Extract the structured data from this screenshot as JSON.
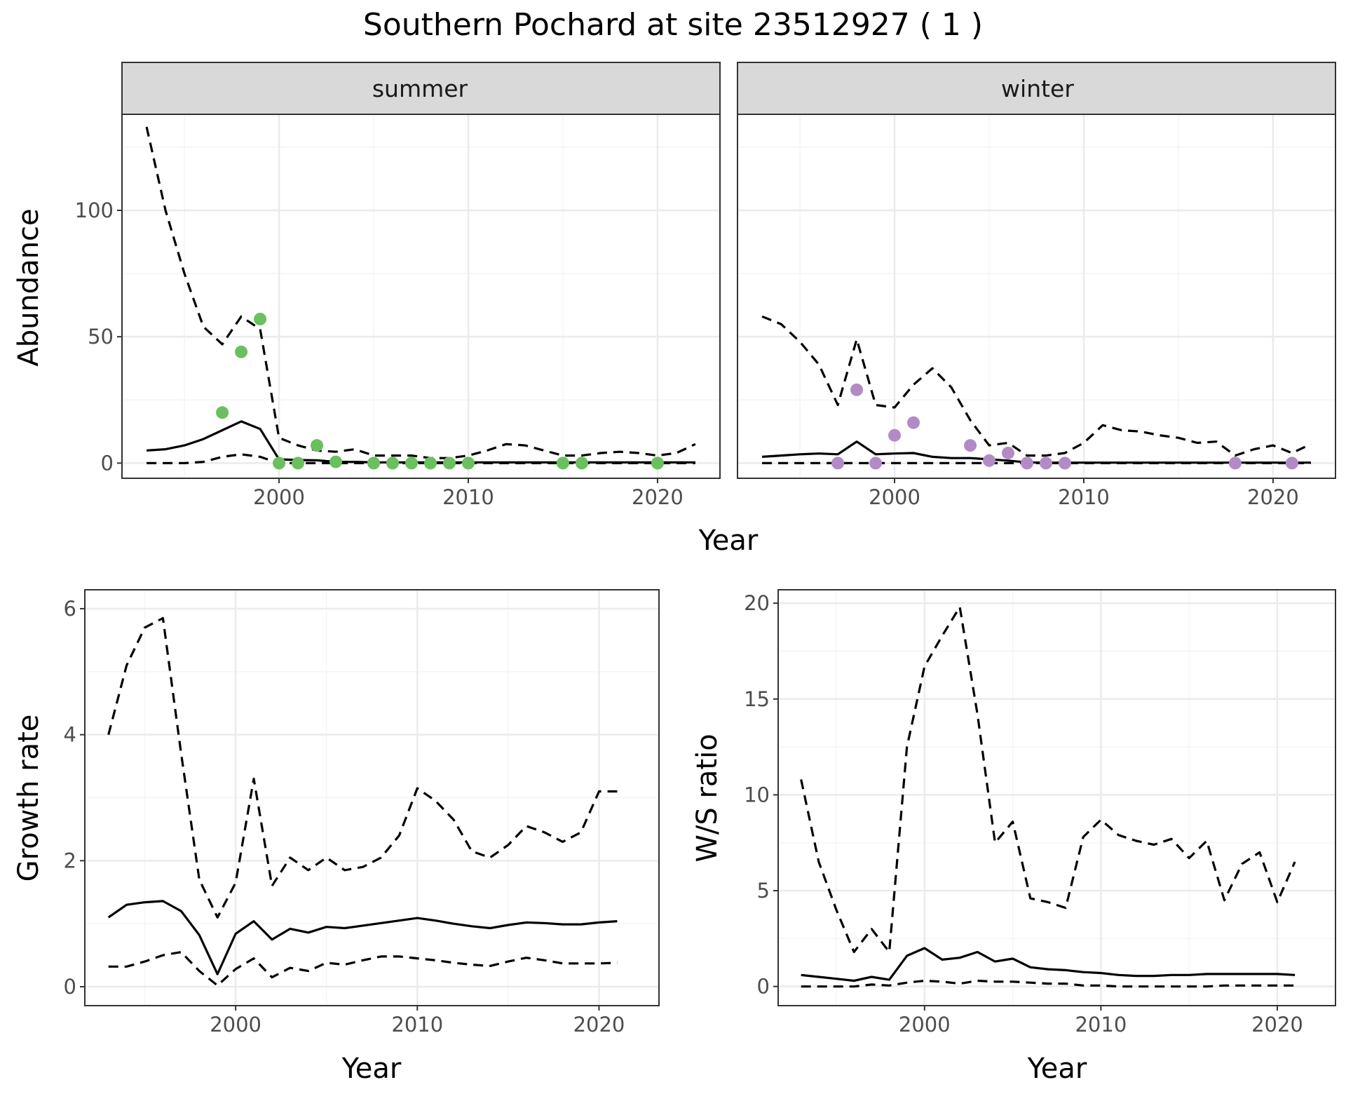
{
  "figure": {
    "title": "Southern Pochard at site 23512927 ( 1 )"
  },
  "colors": {
    "summer_points": "#6abf5e",
    "winter_points": "#b28bc6",
    "lines": "#000000",
    "grid_major": "#ebebeb",
    "grid_minor": "#f5f5f5",
    "strip_fill": "#d9d9d9",
    "panel_border": "#333333"
  },
  "chart_data": [
    {
      "id": "abundance",
      "type": "line",
      "ylabel": "Abundance",
      "xlabel": "Year",
      "xlim": [
        1991.7,
        2023.3
      ],
      "ylim": [
        -6,
        138
      ],
      "xticks": [
        2000,
        2010,
        2020
      ],
      "yticks": [
        0,
        50,
        100
      ],
      "y_minor": [
        25,
        75,
        125
      ],
      "grid": true,
      "facets": [
        {
          "name": "summer",
          "point_color": "summer_points",
          "lines": {
            "x": [
              1993,
              1994,
              1995,
              1996,
              1997,
              1998,
              1999,
              2000,
              2001,
              2002,
              2003,
              2004,
              2005,
              2006,
              2007,
              2008,
              2009,
              2010,
              2011,
              2012,
              2013,
              2014,
              2015,
              2016,
              2017,
              2018,
              2019,
              2020,
              2021,
              2022
            ],
            "median": [
              5,
              5.5,
              7,
              9.5,
              13,
              16.5,
              13.5,
              1.5,
              1.2,
              1.1,
              0.5,
              0.5,
              0.3,
              0.3,
              0.3,
              0.3,
              0.3,
              0.3,
              0.3,
              0.3,
              0.3,
              0.3,
              0.3,
              0.3,
              0.3,
              0.3,
              0.3,
              0.3,
              0.3,
              0.3
            ],
            "upper": [
              133,
              100,
              75,
              54,
              47,
              58,
              53,
              10,
              7,
              5,
              4.5,
              5.5,
              3,
              3,
              3,
              2,
              2,
              3,
              5,
              7.5,
              7,
              5,
              3,
              3,
              4,
              4.5,
              4,
              3,
              4,
              7.5
            ],
            "lower": [
              0,
              0,
              0,
              0.5,
              2.5,
              3.5,
              2.5,
              0,
              0,
              0,
              0,
              0,
              0,
              0,
              0,
              0,
              0,
              0,
              0,
              0,
              0,
              0,
              0,
              0,
              0,
              0,
              0,
              0,
              0,
              0
            ]
          },
          "points": [
            [
              1997,
              20
            ],
            [
              1998,
              44
            ],
            [
              1999,
              57
            ],
            [
              2000,
              0
            ],
            [
              2001,
              0
            ],
            [
              2002,
              7
            ],
            [
              2003,
              0.5
            ],
            [
              2005,
              0
            ],
            [
              2006,
              0
            ],
            [
              2007,
              0
            ],
            [
              2008,
              0
            ],
            [
              2009,
              0
            ],
            [
              2010,
              0
            ],
            [
              2015,
              0
            ],
            [
              2016,
              0
            ],
            [
              2020,
              0
            ]
          ]
        },
        {
          "name": "winter",
          "point_color": "winter_points",
          "lines": {
            "x": [
              1993,
              1994,
              1995,
              1996,
              1997,
              1998,
              1999,
              2000,
              2001,
              2002,
              2003,
              2004,
              2005,
              2006,
              2007,
              2008,
              2009,
              2010,
              2011,
              2012,
              2013,
              2014,
              2015,
              2016,
              2017,
              2018,
              2019,
              2020,
              2021,
              2022
            ],
            "median": [
              2.5,
              3,
              3.5,
              3.8,
              3.5,
              8.5,
              3.5,
              3.8,
              4,
              2.5,
              2,
              2,
              1.5,
              1,
              0.3,
              0.2,
              0.2,
              0.2,
              0.2,
              0.2,
              0.2,
              0.2,
              0.2,
              0.2,
              0.2,
              0.2,
              0.2,
              0.2,
              0.2,
              0.2
            ],
            "upper": [
              58,
              55,
              48,
              39,
              23,
              49,
              23,
              22,
              31,
              37.5,
              30,
              17,
              7,
              8,
              3,
              3,
              4,
              8,
              15,
              13,
              12.5,
              11,
              10,
              8,
              8.5,
              3,
              5.5,
              7,
              4,
              7.5
            ],
            "lower": [
              0,
              0,
              0,
              0,
              0,
              0,
              0,
              0,
              0,
              0,
              0,
              0,
              0,
              0,
              0,
              0,
              0,
              0,
              0,
              0,
              0,
              0,
              0,
              0,
              0,
              0,
              0,
              0,
              0,
              0
            ]
          },
          "points": [
            [
              1997,
              0
            ],
            [
              1998,
              29
            ],
            [
              1999,
              0
            ],
            [
              2000,
              11
            ],
            [
              2001,
              16
            ],
            [
              2004,
              7
            ],
            [
              2005,
              1
            ],
            [
              2006,
              4
            ],
            [
              2007,
              0
            ],
            [
              2008,
              0
            ],
            [
              2009,
              0
            ],
            [
              2018,
              0
            ],
            [
              2021,
              0
            ]
          ]
        }
      ]
    },
    {
      "id": "growth",
      "type": "line",
      "ylabel": "Growth rate",
      "xlabel": "Year",
      "xlim": [
        1991.7,
        2023.3
      ],
      "ylim": [
        -0.3,
        6.3
      ],
      "xticks": [
        2000,
        2010,
        2020
      ],
      "yticks": [
        0,
        2,
        4,
        6
      ],
      "y_minor": [
        1,
        3,
        5
      ],
      "grid": true,
      "series": [
        {
          "name": "median",
          "style": "solid",
          "x": [
            1993,
            1994,
            1995,
            1996,
            1997,
            1998,
            1999,
            2000,
            2001,
            2002,
            2003,
            2004,
            2005,
            2006,
            2007,
            2008,
            2009,
            2010,
            2011,
            2012,
            2013,
            2014,
            2015,
            2016,
            2017,
            2018,
            2019,
            2020,
            2021
          ],
          "y": [
            1.1,
            1.3,
            1.34,
            1.36,
            1.2,
            0.82,
            0.2,
            0.84,
            1.04,
            0.75,
            0.92,
            0.86,
            0.95,
            0.93,
            0.97,
            1.01,
            1.05,
            1.09,
            1.05,
            1,
            0.96,
            0.93,
            0.98,
            1.02,
            1.01,
            0.99,
            0.99,
            1.02,
            1.04
          ]
        },
        {
          "name": "upper",
          "style": "dashed",
          "x": [
            1993,
            1994,
            1995,
            1996,
            1997,
            1998,
            1999,
            2000,
            2001,
            2002,
            2003,
            2004,
            2005,
            2006,
            2007,
            2008,
            2009,
            2010,
            2011,
            2012,
            2013,
            2014,
            2015,
            2016,
            2017,
            2018,
            2019,
            2020,
            2021
          ],
          "y": [
            4,
            5.1,
            5.7,
            5.85,
            3.7,
            1.7,
            1.1,
            1.65,
            3.3,
            1.6,
            2.05,
            1.85,
            2.05,
            1.85,
            1.9,
            2.05,
            2.4,
            3.15,
            2.95,
            2.65,
            2.15,
            2.05,
            2.25,
            2.55,
            2.45,
            2.3,
            2.45,
            3.1,
            3.1
          ]
        },
        {
          "name": "lower",
          "style": "dashed",
          "x": [
            1993,
            1994,
            1995,
            1996,
            1997,
            1998,
            1999,
            2000,
            2001,
            2002,
            2003,
            2004,
            2005,
            2006,
            2007,
            2008,
            2009,
            2010,
            2011,
            2012,
            2013,
            2014,
            2015,
            2016,
            2017,
            2018,
            2019,
            2020,
            2021
          ],
          "y": [
            0.32,
            0.32,
            0.4,
            0.5,
            0.55,
            0.25,
            0.02,
            0.28,
            0.45,
            0.15,
            0.3,
            0.25,
            0.38,
            0.35,
            0.42,
            0.48,
            0.48,
            0.45,
            0.42,
            0.38,
            0.35,
            0.33,
            0.4,
            0.46,
            0.42,
            0.37,
            0.37,
            0.37,
            0.38
          ]
        }
      ]
    },
    {
      "id": "ws_ratio",
      "type": "line",
      "ylabel": "W/S ratio",
      "xlabel": "Year",
      "xlim": [
        1991.7,
        2023.3
      ],
      "ylim": [
        -1,
        20.7
      ],
      "xticks": [
        2000,
        2010,
        2020
      ],
      "yticks": [
        0,
        5,
        10,
        15,
        20
      ],
      "y_minor": [
        2.5,
        7.5,
        12.5,
        17.5
      ],
      "grid": true,
      "series": [
        {
          "name": "median",
          "style": "solid",
          "x": [
            1993,
            1994,
            1995,
            1996,
            1997,
            1998,
            1999,
            2000,
            2001,
            2002,
            2003,
            2004,
            2005,
            2006,
            2007,
            2008,
            2009,
            2010,
            2011,
            2012,
            2013,
            2014,
            2015,
            2016,
            2017,
            2018,
            2019,
            2020,
            2021
          ],
          "y": [
            0.6,
            0.5,
            0.4,
            0.3,
            0.5,
            0.35,
            1.6,
            2,
            1.4,
            1.5,
            1.8,
            1.3,
            1.45,
            1,
            0.9,
            0.85,
            0.75,
            0.7,
            0.6,
            0.55,
            0.55,
            0.6,
            0.6,
            0.65,
            0.65,
            0.65,
            0.65,
            0.65,
            0.6
          ]
        },
        {
          "name": "upper",
          "style": "dashed",
          "x": [
            1993,
            1994,
            1995,
            1996,
            1997,
            1998,
            1999,
            2000,
            2001,
            2002,
            2003,
            2004,
            2005,
            2006,
            2007,
            2008,
            2009,
            2010,
            2011,
            2012,
            2013,
            2014,
            2015,
            2016,
            2017,
            2018,
            2019,
            2020,
            2021
          ],
          "y": [
            10.8,
            6.5,
            4,
            1.8,
            3,
            1.8,
            12.5,
            16.7,
            18.3,
            19.8,
            14.2,
            7.5,
            8.6,
            4.6,
            4.4,
            4.1,
            7.8,
            8.7,
            7.9,
            7.6,
            7.4,
            7.7,
            6.7,
            7.6,
            4.5,
            6.4,
            7,
            4.4,
            6.5
          ]
        },
        {
          "name": "lower",
          "style": "dashed",
          "x": [
            1993,
            1994,
            1995,
            1996,
            1997,
            1998,
            1999,
            2000,
            2001,
            2002,
            2003,
            2004,
            2005,
            2006,
            2007,
            2008,
            2009,
            2010,
            2011,
            2012,
            2013,
            2014,
            2015,
            2016,
            2017,
            2018,
            2019,
            2020,
            2021
          ],
          "y": [
            0,
            0,
            0,
            0,
            0.1,
            0.05,
            0.2,
            0.3,
            0.25,
            0.15,
            0.3,
            0.25,
            0.25,
            0.2,
            0.15,
            0.15,
            0.05,
            0.05,
            0,
            0,
            0,
            0,
            0,
            0,
            0.05,
            0.05,
            0.05,
            0.05,
            0.05
          ]
        }
      ]
    }
  ]
}
